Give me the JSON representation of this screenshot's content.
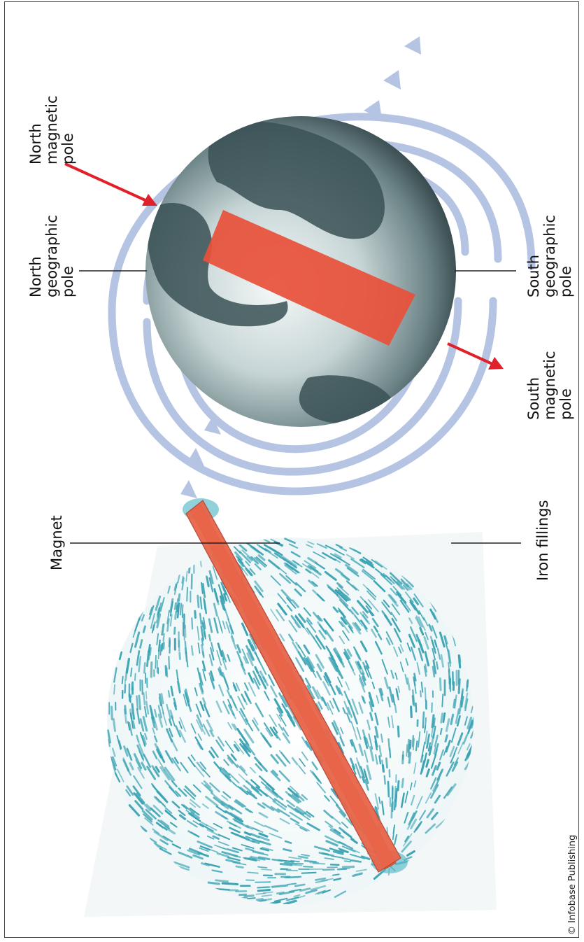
{
  "labels": {
    "magnet": "Magnet",
    "iron_fillings": "Iron fillings",
    "north_geographic_pole": [
      "North",
      "geographic",
      "pole"
    ],
    "north_magnetic_pole": [
      "North",
      "magnetic",
      "pole"
    ],
    "south_geographic_pole": [
      "South",
      "geographic",
      "pole"
    ],
    "south_magnetic_pole": [
      "South",
      "magnetic",
      "pole"
    ]
  },
  "credit": "© Infobase Publishing",
  "colors": {
    "magnet_red": "#e8503a",
    "field_line_blue": "#b4c4e2",
    "filings_teal": "#3aa3b3",
    "pointer_arrow_red": "#e0202a",
    "globe_dark": "#2f4347",
    "globe_light": "#e6eeee"
  }
}
